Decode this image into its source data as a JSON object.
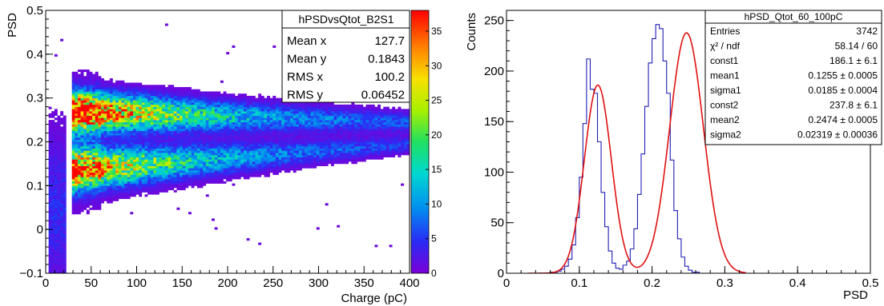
{
  "chart_data": [
    {
      "type": "heatmap",
      "title": "",
      "xlabel": "Charge (pC)",
      "ylabel": "PSD",
      "xlim": [
        0,
        400
      ],
      "ylim": [
        -0.1,
        0.5
      ],
      "x_ticks": [
        0,
        50,
        100,
        150,
        200,
        250,
        300,
        350,
        400
      ],
      "y_ticks": [
        -0.1,
        0,
        0.1,
        0.2,
        0.3,
        0.4,
        0.5
      ],
      "y_tick_labels": [
        "−0.1",
        "0",
        "0.1",
        "0.2",
        "0.3",
        "0.4",
        "0.5"
      ],
      "colorbar": {
        "min": 0,
        "max": 38,
        "ticks": [
          0,
          5,
          10,
          15,
          20,
          25,
          30,
          35
        ]
      },
      "bands": [
        {
          "center_at_start": 0.27,
          "center_at_end": 0.245,
          "x_start": 28,
          "x_end": 400,
          "peak_counts": 36
        },
        {
          "center_at_start": 0.135,
          "center_at_end": 0.195,
          "x_start": 28,
          "x_end": 400,
          "peak_counts": 30
        }
      ],
      "stats_box": {
        "name": "hPSDvsQtot_B2S1",
        "rows": [
          {
            "label": "Mean x",
            "value": "127.7"
          },
          {
            "label": "Mean y",
            "value": "0.1843"
          },
          {
            "label": "RMS x",
            "value": "100.2"
          },
          {
            "label": "RMS y",
            "value": "0.06452"
          }
        ]
      }
    },
    {
      "type": "line",
      "title": "",
      "xlabel": "PSD",
      "ylabel": "Counts",
      "xlim": [
        0,
        0.5
      ],
      "ylim": [
        0,
        260
      ],
      "x_ticks": [
        0,
        0.1,
        0.2,
        0.3,
        0.4,
        0.5
      ],
      "y_ticks": [
        0,
        50,
        100,
        150,
        200,
        250
      ],
      "bin_width": 0.005,
      "histogram": {
        "x_start": 0.06,
        "counts": [
          1,
          1,
          2,
          4,
          7,
          14,
          28,
          55,
          95,
          148,
          212,
          182,
          178,
          130,
          80,
          46,
          22,
          10,
          5,
          4,
          8,
          12,
          24,
          44,
          78,
          118,
          165,
          208,
          232,
          246,
          242,
          210,
          178,
          112,
          62,
          34,
          16,
          7,
          3,
          1,
          1
        ]
      },
      "fit": {
        "function": "double gaussian",
        "const1": 186.1,
        "mean1": 0.1255,
        "sigma1": 0.0185,
        "const2": 237.8,
        "mean2": 0.2474,
        "sigma2": 0.02319
      },
      "stats_box": {
        "name": "hPSD_Qtot_60_100pC",
        "rows": [
          {
            "label": "Entries",
            "value": "3742"
          },
          {
            "label": "χ² / ndf",
            "value": "58.14 / 60"
          },
          {
            "label": "const1",
            "value": "186.1 ± 6.1"
          },
          {
            "label": "mean1",
            "value": "0.1255 ± 0.0005"
          },
          {
            "label": "sigma1",
            "value": "0.0185 ± 0.0004"
          },
          {
            "label": "const2",
            "value": "237.8 ± 6.1"
          },
          {
            "label": "mean2",
            "value": "0.2474 ± 0.0005"
          },
          {
            "label": "sigma2",
            "value": "0.02319 ± 0.00036"
          }
        ]
      },
      "colors": {
        "histogram": "#1f1fb4",
        "fit": "#e01010"
      }
    }
  ]
}
